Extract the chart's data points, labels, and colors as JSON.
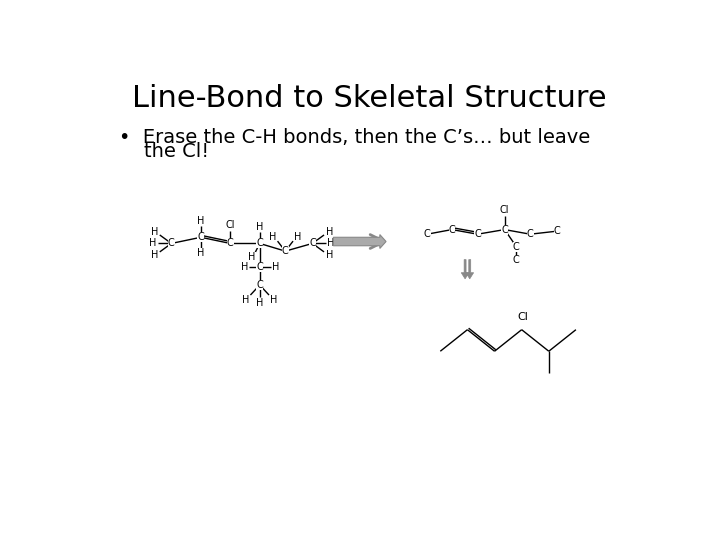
{
  "title": "Line-Bond to Skeletal Structure",
  "bullet_line1": "•  Erase the C-H bonds, then the C’s… but leave",
  "bullet_line2": "    the Cl!",
  "bg_color": "#ffffff",
  "text_color": "#000000",
  "title_fontsize": 22,
  "bullet_fontsize": 14,
  "lfs": 7,
  "lw": 1.0
}
